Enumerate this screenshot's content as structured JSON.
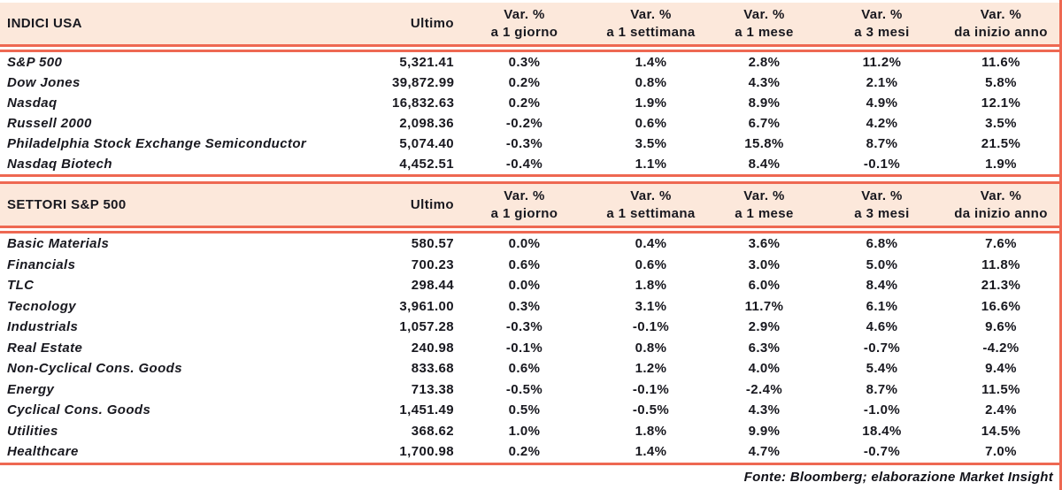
{
  "colors": {
    "accent_line": "#ee6852",
    "header_band_bg": "#fce8db",
    "text": "#18181f"
  },
  "columns": {
    "ultimo": "Ultimo",
    "var_label": "Var. %",
    "periods": [
      "a 1 giorno",
      "a 1 settimana",
      "a 1 mese",
      "a 3 mesi",
      "da inizio anno"
    ]
  },
  "tables": [
    {
      "title": "INDICI USA",
      "rows": [
        {
          "name": "S&P 500",
          "ultimo": "5,321.41",
          "vars": [
            "0.3%",
            "1.4%",
            "2.8%",
            "11.2%",
            "11.6%"
          ]
        },
        {
          "name": "Dow Jones",
          "ultimo": "39,872.99",
          "vars": [
            "0.2%",
            "0.8%",
            "4.3%",
            "2.1%",
            "5.8%"
          ]
        },
        {
          "name": "Nasdaq",
          "ultimo": "16,832.63",
          "vars": [
            "0.2%",
            "1.9%",
            "8.9%",
            "4.9%",
            "12.1%"
          ]
        },
        {
          "name": "Russell 2000",
          "ultimo": "2,098.36",
          "vars": [
            "-0.2%",
            "0.6%",
            "6.7%",
            "4.2%",
            "3.5%"
          ]
        },
        {
          "name": "Philadelphia Stock Exchange Semiconductor",
          "ultimo": "5,074.40",
          "vars": [
            "-0.3%",
            "3.5%",
            "15.8%",
            "8.7%",
            "21.5%"
          ]
        },
        {
          "name": "Nasdaq Biotech",
          "ultimo": "4,452.51",
          "vars": [
            "-0.4%",
            "1.1%",
            "8.4%",
            "-0.1%",
            "1.9%"
          ]
        }
      ]
    },
    {
      "title": "SETTORI S&P 500",
      "rows": [
        {
          "name": "Basic Materials",
          "ultimo": "580.57",
          "vars": [
            "0.0%",
            "0.4%",
            "3.6%",
            "6.8%",
            "7.6%"
          ]
        },
        {
          "name": "Financials",
          "ultimo": "700.23",
          "vars": [
            "0.6%",
            "0.6%",
            "3.0%",
            "5.0%",
            "11.8%"
          ]
        },
        {
          "name": "TLC",
          "ultimo": "298.44",
          "vars": [
            "0.0%",
            "1.8%",
            "6.0%",
            "8.4%",
            "21.3%"
          ]
        },
        {
          "name": "Tecnology",
          "ultimo": "3,961.00",
          "vars": [
            "0.3%",
            "3.1%",
            "11.7%",
            "6.1%",
            "16.6%"
          ]
        },
        {
          "name": "Industrials",
          "ultimo": "1,057.28",
          "vars": [
            "-0.3%",
            "-0.1%",
            "2.9%",
            "4.6%",
            "9.6%"
          ]
        },
        {
          "name": "Real Estate",
          "ultimo": "240.98",
          "vars": [
            "-0.1%",
            "0.8%",
            "6.3%",
            "-0.7%",
            "-4.2%"
          ]
        },
        {
          "name": "Non-Cyclical Cons. Goods",
          "ultimo": "833.68",
          "vars": [
            "0.6%",
            "1.2%",
            "4.0%",
            "5.4%",
            "9.4%"
          ]
        },
        {
          "name": "Energy",
          "ultimo": "713.38",
          "vars": [
            "-0.5%",
            "-0.1%",
            "-2.4%",
            "8.7%",
            "11.5%"
          ]
        },
        {
          "name": "Cyclical Cons. Goods",
          "ultimo": "1,451.49",
          "vars": [
            "0.5%",
            "-0.5%",
            "4.3%",
            "-1.0%",
            "2.4%"
          ]
        },
        {
          "name": "Utilities",
          "ultimo": "368.62",
          "vars": [
            "1.0%",
            "1.8%",
            "9.9%",
            "18.4%",
            "14.5%"
          ]
        },
        {
          "name": "Healthcare",
          "ultimo": "1,700.98",
          "vars": [
            "0.2%",
            "1.4%",
            "4.7%",
            "-0.7%",
            "7.0%"
          ]
        }
      ]
    }
  ],
  "footer": "Fonte: Bloomberg; elaborazione Market Insight",
  "chart_data": [
    {
      "type": "table",
      "title": "INDICI USA",
      "columns": [
        "Ultimo",
        "Var. % a 1 giorno",
        "Var. % a 1 settimana",
        "Var. % a 1 mese",
        "Var. % a 3 mesi",
        "Var. % da inizio anno"
      ],
      "rows": [
        [
          "S&P 500",
          5321.41,
          0.3,
          1.4,
          2.8,
          11.2,
          11.6
        ],
        [
          "Dow Jones",
          39872.99,
          0.2,
          0.8,
          4.3,
          2.1,
          5.8
        ],
        [
          "Nasdaq",
          16832.63,
          0.2,
          1.9,
          8.9,
          4.9,
          12.1
        ],
        [
          "Russell 2000",
          2098.36,
          -0.2,
          0.6,
          6.7,
          4.2,
          3.5
        ],
        [
          "Philadelphia Stock Exchange Semiconductor",
          5074.4,
          -0.3,
          3.5,
          15.8,
          8.7,
          21.5
        ],
        [
          "Nasdaq Biotech",
          4452.51,
          -0.4,
          1.1,
          8.4,
          -0.1,
          1.9
        ]
      ]
    },
    {
      "type": "table",
      "title": "SETTORI S&P 500",
      "columns": [
        "Ultimo",
        "Var. % a 1 giorno",
        "Var. % a 1 settimana",
        "Var. % a 1 mese",
        "Var. % a 3 mesi",
        "Var. % da inizio anno"
      ],
      "rows": [
        [
          "Basic Materials",
          580.57,
          0.0,
          0.4,
          3.6,
          6.8,
          7.6
        ],
        [
          "Financials",
          700.23,
          0.6,
          0.6,
          3.0,
          5.0,
          11.8
        ],
        [
          "TLC",
          298.44,
          0.0,
          1.8,
          6.0,
          8.4,
          21.3
        ],
        [
          "Tecnology",
          3961.0,
          0.3,
          3.1,
          11.7,
          6.1,
          16.6
        ],
        [
          "Industrials",
          1057.28,
          -0.3,
          -0.1,
          2.9,
          4.6,
          9.6
        ],
        [
          "Real Estate",
          240.98,
          -0.1,
          0.8,
          6.3,
          -0.7,
          -4.2
        ],
        [
          "Non-Cyclical Cons. Goods",
          833.68,
          0.6,
          1.2,
          4.0,
          5.4,
          9.4
        ],
        [
          "Energy",
          713.38,
          -0.5,
          -0.1,
          -2.4,
          8.7,
          11.5
        ],
        [
          "Cyclical Cons. Goods",
          1451.49,
          0.5,
          -0.5,
          4.3,
          -1.0,
          2.4
        ],
        [
          "Utilities",
          368.62,
          1.0,
          1.8,
          9.9,
          18.4,
          14.5
        ],
        [
          "Healthcare",
          1700.98,
          0.2,
          1.4,
          4.7,
          -0.7,
          7.0
        ]
      ]
    }
  ]
}
